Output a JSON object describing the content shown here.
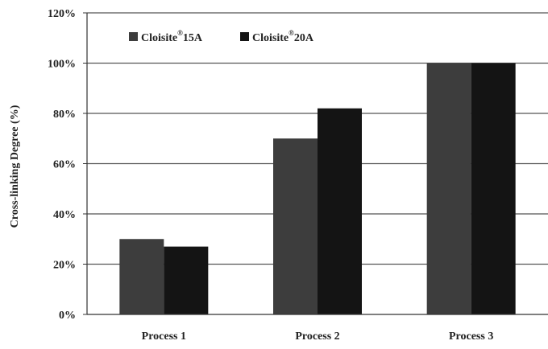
{
  "chart_data": {
    "type": "bar",
    "title": "",
    "xlabel": "",
    "ylabel": "Cross-linking Degree (%)",
    "categories": [
      "Process 1",
      "Process 2",
      "Process 3"
    ],
    "series": [
      {
        "name": "Cloisite®15A",
        "values": [
          30,
          70,
          100
        ],
        "color": "#3d3d3d"
      },
      {
        "name": "Cloisite®20A",
        "values": [
          27,
          82,
          100
        ],
        "color": "#141414"
      }
    ],
    "ylim": [
      0,
      120
    ],
    "yticks": [
      0,
      20,
      40,
      60,
      80,
      100,
      120
    ],
    "ytick_labels": [
      "0%",
      "20%",
      "40%",
      "60%",
      "80%",
      "100%",
      "120%"
    ],
    "grid": "horizontal",
    "legend_position": "top-left",
    "legend": [
      {
        "base": "Cloisite",
        "sup": "®",
        "suffix": "15A"
      },
      {
        "base": "Cloisite",
        "sup": "®",
        "suffix": "20A"
      }
    ]
  }
}
